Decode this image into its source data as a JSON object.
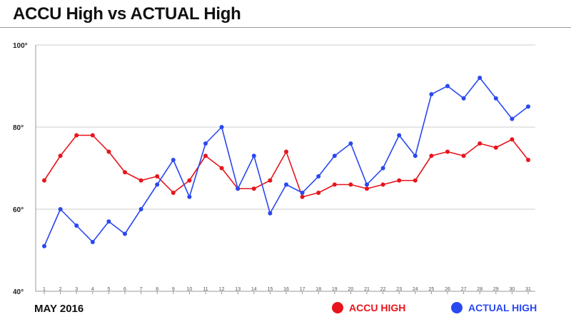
{
  "title": "ACCU High vs ACTUAL High",
  "footer_label": "MAY 2016",
  "colors": {
    "accu": "#e8141b",
    "actual": "#2a48f0"
  },
  "chart_data": {
    "type": "line",
    "title": "ACCU High vs ACTUAL High",
    "xlabel": "",
    "ylabel": "",
    "x": [
      1,
      2,
      3,
      4,
      5,
      6,
      7,
      8,
      9,
      10,
      11,
      12,
      13,
      14,
      15,
      16,
      17,
      18,
      19,
      20,
      21,
      22,
      23,
      24,
      25,
      26,
      27,
      28,
      29,
      30,
      31
    ],
    "ylim": [
      40,
      100
    ],
    "yticks": [
      40,
      60,
      80,
      100
    ],
    "ytick_labels": [
      "40°",
      "60°",
      "80°",
      "100°"
    ],
    "grid": "y-only",
    "legend_position": "bottom-right",
    "series": [
      {
        "name": "ACCU HIGH",
        "color": "#e8141b",
        "values": [
          67,
          73,
          78,
          78,
          74,
          69,
          67,
          68,
          64,
          67,
          73,
          70,
          65,
          65,
          67,
          74,
          63,
          64,
          66,
          66,
          65,
          66,
          67,
          67,
          73,
          74,
          73,
          76,
          75,
          77,
          72
        ]
      },
      {
        "name": "ACTUAL HIGH",
        "color": "#2a48f0",
        "values": [
          51,
          60,
          56,
          52,
          57,
          54,
          60,
          66,
          72,
          63,
          76,
          80,
          65,
          73,
          59,
          66,
          64,
          68,
          73,
          76,
          66,
          70,
          78,
          73,
          88,
          90,
          87,
          92,
          87,
          82,
          85
        ]
      }
    ]
  }
}
